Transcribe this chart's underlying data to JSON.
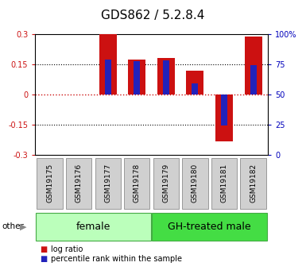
{
  "title": "GDS862 / 5.2.8.4",
  "samples": [
    "GSM19175",
    "GSM19176",
    "GSM19177",
    "GSM19178",
    "GSM19179",
    "GSM19180",
    "GSM19181",
    "GSM19182"
  ],
  "log_ratio": [
    0.0,
    0.0,
    0.3,
    0.175,
    0.18,
    0.12,
    -0.235,
    0.29
  ],
  "percentile_rank": [
    0.0,
    0.0,
    0.175,
    0.165,
    0.17,
    0.055,
    -0.155,
    0.145
  ],
  "groups": [
    {
      "label": "female",
      "start": 0,
      "end": 3,
      "color": "#bbffbb"
    },
    {
      "label": "GH-treated male",
      "start": 4,
      "end": 7,
      "color": "#44dd44"
    }
  ],
  "ylim": [
    -0.3,
    0.3
  ],
  "y2lim": [
    0,
    100
  ],
  "yticks": [
    -0.3,
    -0.15,
    0.0,
    0.15,
    0.3
  ],
  "y2ticks": [
    0,
    25,
    50,
    75,
    100
  ],
  "ytick_labels": [
    "-0.3",
    "-0.15",
    "0",
    "0.15",
    "0.3"
  ],
  "y2tick_labels": [
    "0",
    "25",
    "50",
    "75",
    "100%"
  ],
  "bar_color": "#cc1111",
  "blue_color": "#2222bb",
  "zero_line_color": "#cc1111",
  "title_fontsize": 11,
  "tick_fontsize": 7,
  "sample_fontsize": 6.5,
  "group_fontsize": 9,
  "legend_fontsize": 7,
  "bar_width": 0.6,
  "blue_bar_width": 0.22
}
